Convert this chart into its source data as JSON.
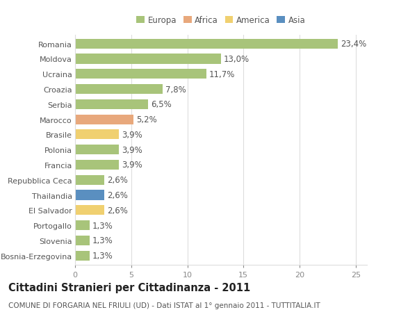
{
  "countries": [
    "Romania",
    "Moldova",
    "Ucraina",
    "Croazia",
    "Serbia",
    "Marocco",
    "Brasile",
    "Polonia",
    "Francia",
    "Repubblica Ceca",
    "Thailandia",
    "El Salvador",
    "Portogallo",
    "Slovenia",
    "Bosnia-Erzegovina"
  ],
  "values": [
    23.4,
    13.0,
    11.7,
    7.8,
    6.5,
    5.2,
    3.9,
    3.9,
    3.9,
    2.6,
    2.6,
    2.6,
    1.3,
    1.3,
    1.3
  ],
  "labels": [
    "23,4%",
    "13,0%",
    "11,7%",
    "7,8%",
    "6,5%",
    "5,2%",
    "3,9%",
    "3,9%",
    "3,9%",
    "2,6%",
    "2,6%",
    "2,6%",
    "1,3%",
    "1,3%",
    "1,3%"
  ],
  "continents": [
    "Europa",
    "Europa",
    "Europa",
    "Europa",
    "Europa",
    "Africa",
    "America",
    "Europa",
    "Europa",
    "Europa",
    "Asia",
    "America",
    "Europa",
    "Europa",
    "Europa"
  ],
  "colors": {
    "Europa": "#a8c47a",
    "Africa": "#e8a87c",
    "America": "#f0d070",
    "Asia": "#5a8fc0"
  },
  "legend_order": [
    "Europa",
    "Africa",
    "America",
    "Asia"
  ],
  "title": "Cittadini Stranieri per Cittadinanza - 2011",
  "subtitle": "COMUNE DI FORGARIA NEL FRIULI (UD) - Dati ISTAT al 1° gennaio 2011 - TUTTITALIA.IT",
  "xlim": [
    0,
    26
  ],
  "xticks": [
    0,
    5,
    10,
    15,
    20,
    25
  ],
  "bg_color": "#ffffff",
  "grid_color": "#dddddd",
  "bar_height": 0.65,
  "label_fontsize": 8.5,
  "tick_fontsize": 8,
  "title_fontsize": 10.5,
  "subtitle_fontsize": 7.5
}
